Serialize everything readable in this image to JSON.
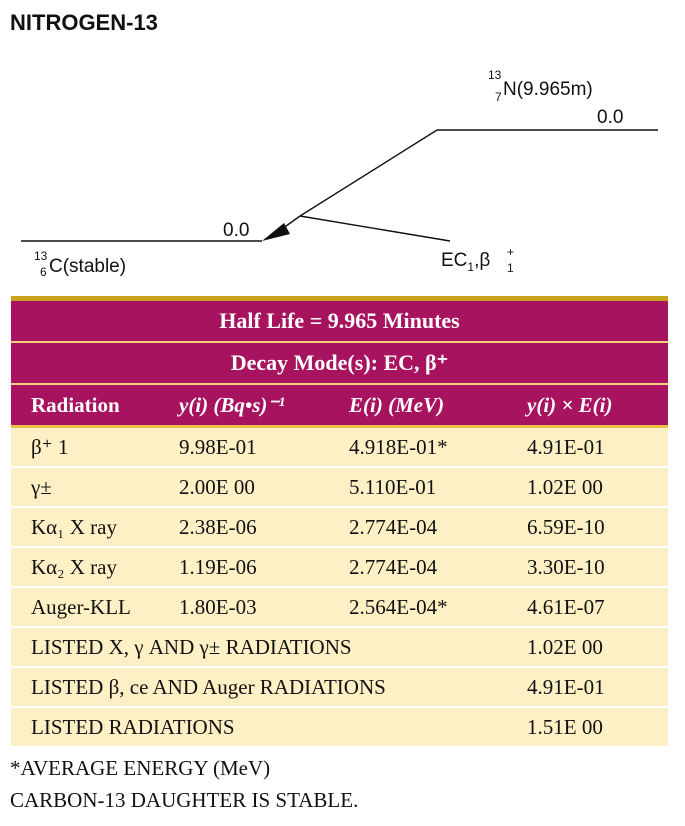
{
  "title": "NITROGEN-13",
  "scheme": {
    "parent_mass": "13",
    "parent_z": "7",
    "parent_label": "N(9.965m)",
    "parent_level": "0.0",
    "daughter_level": "0.0",
    "daughter_mass": "13",
    "daughter_z": "6",
    "daughter_label": "C(stable)",
    "transition_label": "EC",
    "transition_sub": "1",
    "transition_beta": "β",
    "transition_beta_sup": "+",
    "transition_beta_sub": "1",
    "transition_sep": ","
  },
  "table": {
    "half_life": "Half Life = 9.965 Minutes",
    "decay_modes": "Decay Mode(s): EC, β⁺",
    "headers": [
      "Radiation",
      "y(i) (Bq•s)⁻¹",
      "E(i) (MeV)",
      "y(i) × E(i)"
    ],
    "rows": [
      [
        "β⁺ 1",
        "9.98E-01",
        "4.918E-01*",
        "4.91E-01"
      ],
      [
        "γ±",
        "2.00E 00",
        "5.110E-01",
        "1.02E 00"
      ],
      [
        "Kα₁ X ray",
        "2.38E-06",
        "2.774E-04",
        "6.59E-10"
      ],
      [
        "Kα₂ X ray",
        "1.19E-06",
        "2.774E-04",
        "3.30E-10"
      ],
      [
        "Auger-KLL",
        "1.80E-03",
        "2.564E-04*",
        "4.61E-07"
      ]
    ],
    "summary_rows": [
      [
        "LISTED X, γ AND γ± RADIATIONS",
        "1.02E 00"
      ],
      [
        "LISTED β, ce AND Auger RADIATIONS",
        "4.91E-01"
      ],
      [
        "LISTED RADIATIONS",
        "1.51E 00"
      ]
    ]
  },
  "footnotes": [
    "*AVERAGE ENERGY (MeV)",
    "CARBON-13 DAUGHTER IS STABLE."
  ],
  "colors": {
    "band": "#a8135f",
    "row_fill": "#fdf0c4",
    "gold_rule": "#c8a21a"
  }
}
